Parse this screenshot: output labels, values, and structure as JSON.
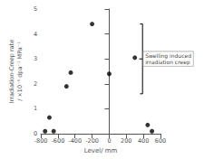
{
  "chart_data": {
    "type": "scatter",
    "x": [
      -750,
      -700,
      -650,
      -500,
      -450,
      -200,
      0,
      300,
      450,
      500
    ],
    "values": [
      0.1,
      0.65,
      0.1,
      1.9,
      2.45,
      4.4,
      2.4,
      3.05,
      0.35,
      0.1
    ],
    "color": "black",
    "xlabel": "Level/ mm",
    "ylabel": "Irradiation-Creep rate\n/ ×10⁻⁵ dpa⁻¹ MPa⁻¹",
    "xlim": [
      -800,
      600
    ],
    "ylim": [
      0,
      5
    ],
    "xticks": [
      -800,
      -600,
      -400,
      -200,
      0,
      200,
      400,
      600
    ],
    "yticks": [
      0,
      1,
      2,
      3,
      4,
      5
    ],
    "grid": false,
    "annotations": [
      {
        "text": "Swelling induced\nirradiation creep",
        "x": 400,
        "y": 3.0
      }
    ],
    "bracket": {
      "x": 390,
      "y": [
        1.6,
        4.4
      ]
    }
  }
}
